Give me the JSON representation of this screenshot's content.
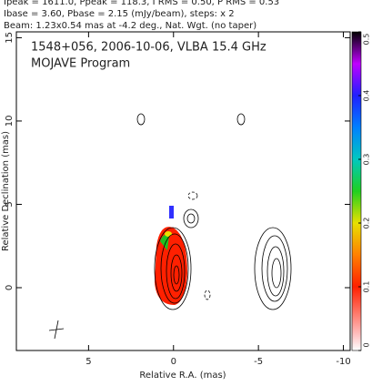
{
  "chart_data": {
    "type": "contour",
    "header": [
      "Ipeak = 1611.0, Ppeak = 118.3, I RMS = 0.50, P RMS = 0.53",
      "Ibase = 3.60, Pbase = 2.15 (mJy/beam), steps: x 2",
      "Beam: 1.23x0.54 mas at -4.2 deg., Nat. Wgt. (no taper)"
    ],
    "title": "1548+056, 2006-10-06, VLBA 15.4 GHz",
    "subtitle": "MOJAVE Program",
    "x_label": "Relative R.A. (mas)",
    "y_label": "Relative Declination (mas)",
    "xlim": [
      9.25,
      -10.4
    ],
    "xticks": [
      5,
      0,
      -5,
      -10
    ],
    "ylim": [
      -3.77,
      15.35
    ],
    "yticks": [
      0,
      5,
      10,
      15
    ],
    "colorbar": {
      "lim": [
        0,
        0.5
      ],
      "ticks": [
        0,
        0.1,
        0.2,
        0.3,
        0.4,
        0.5
      ]
    }
  }
}
